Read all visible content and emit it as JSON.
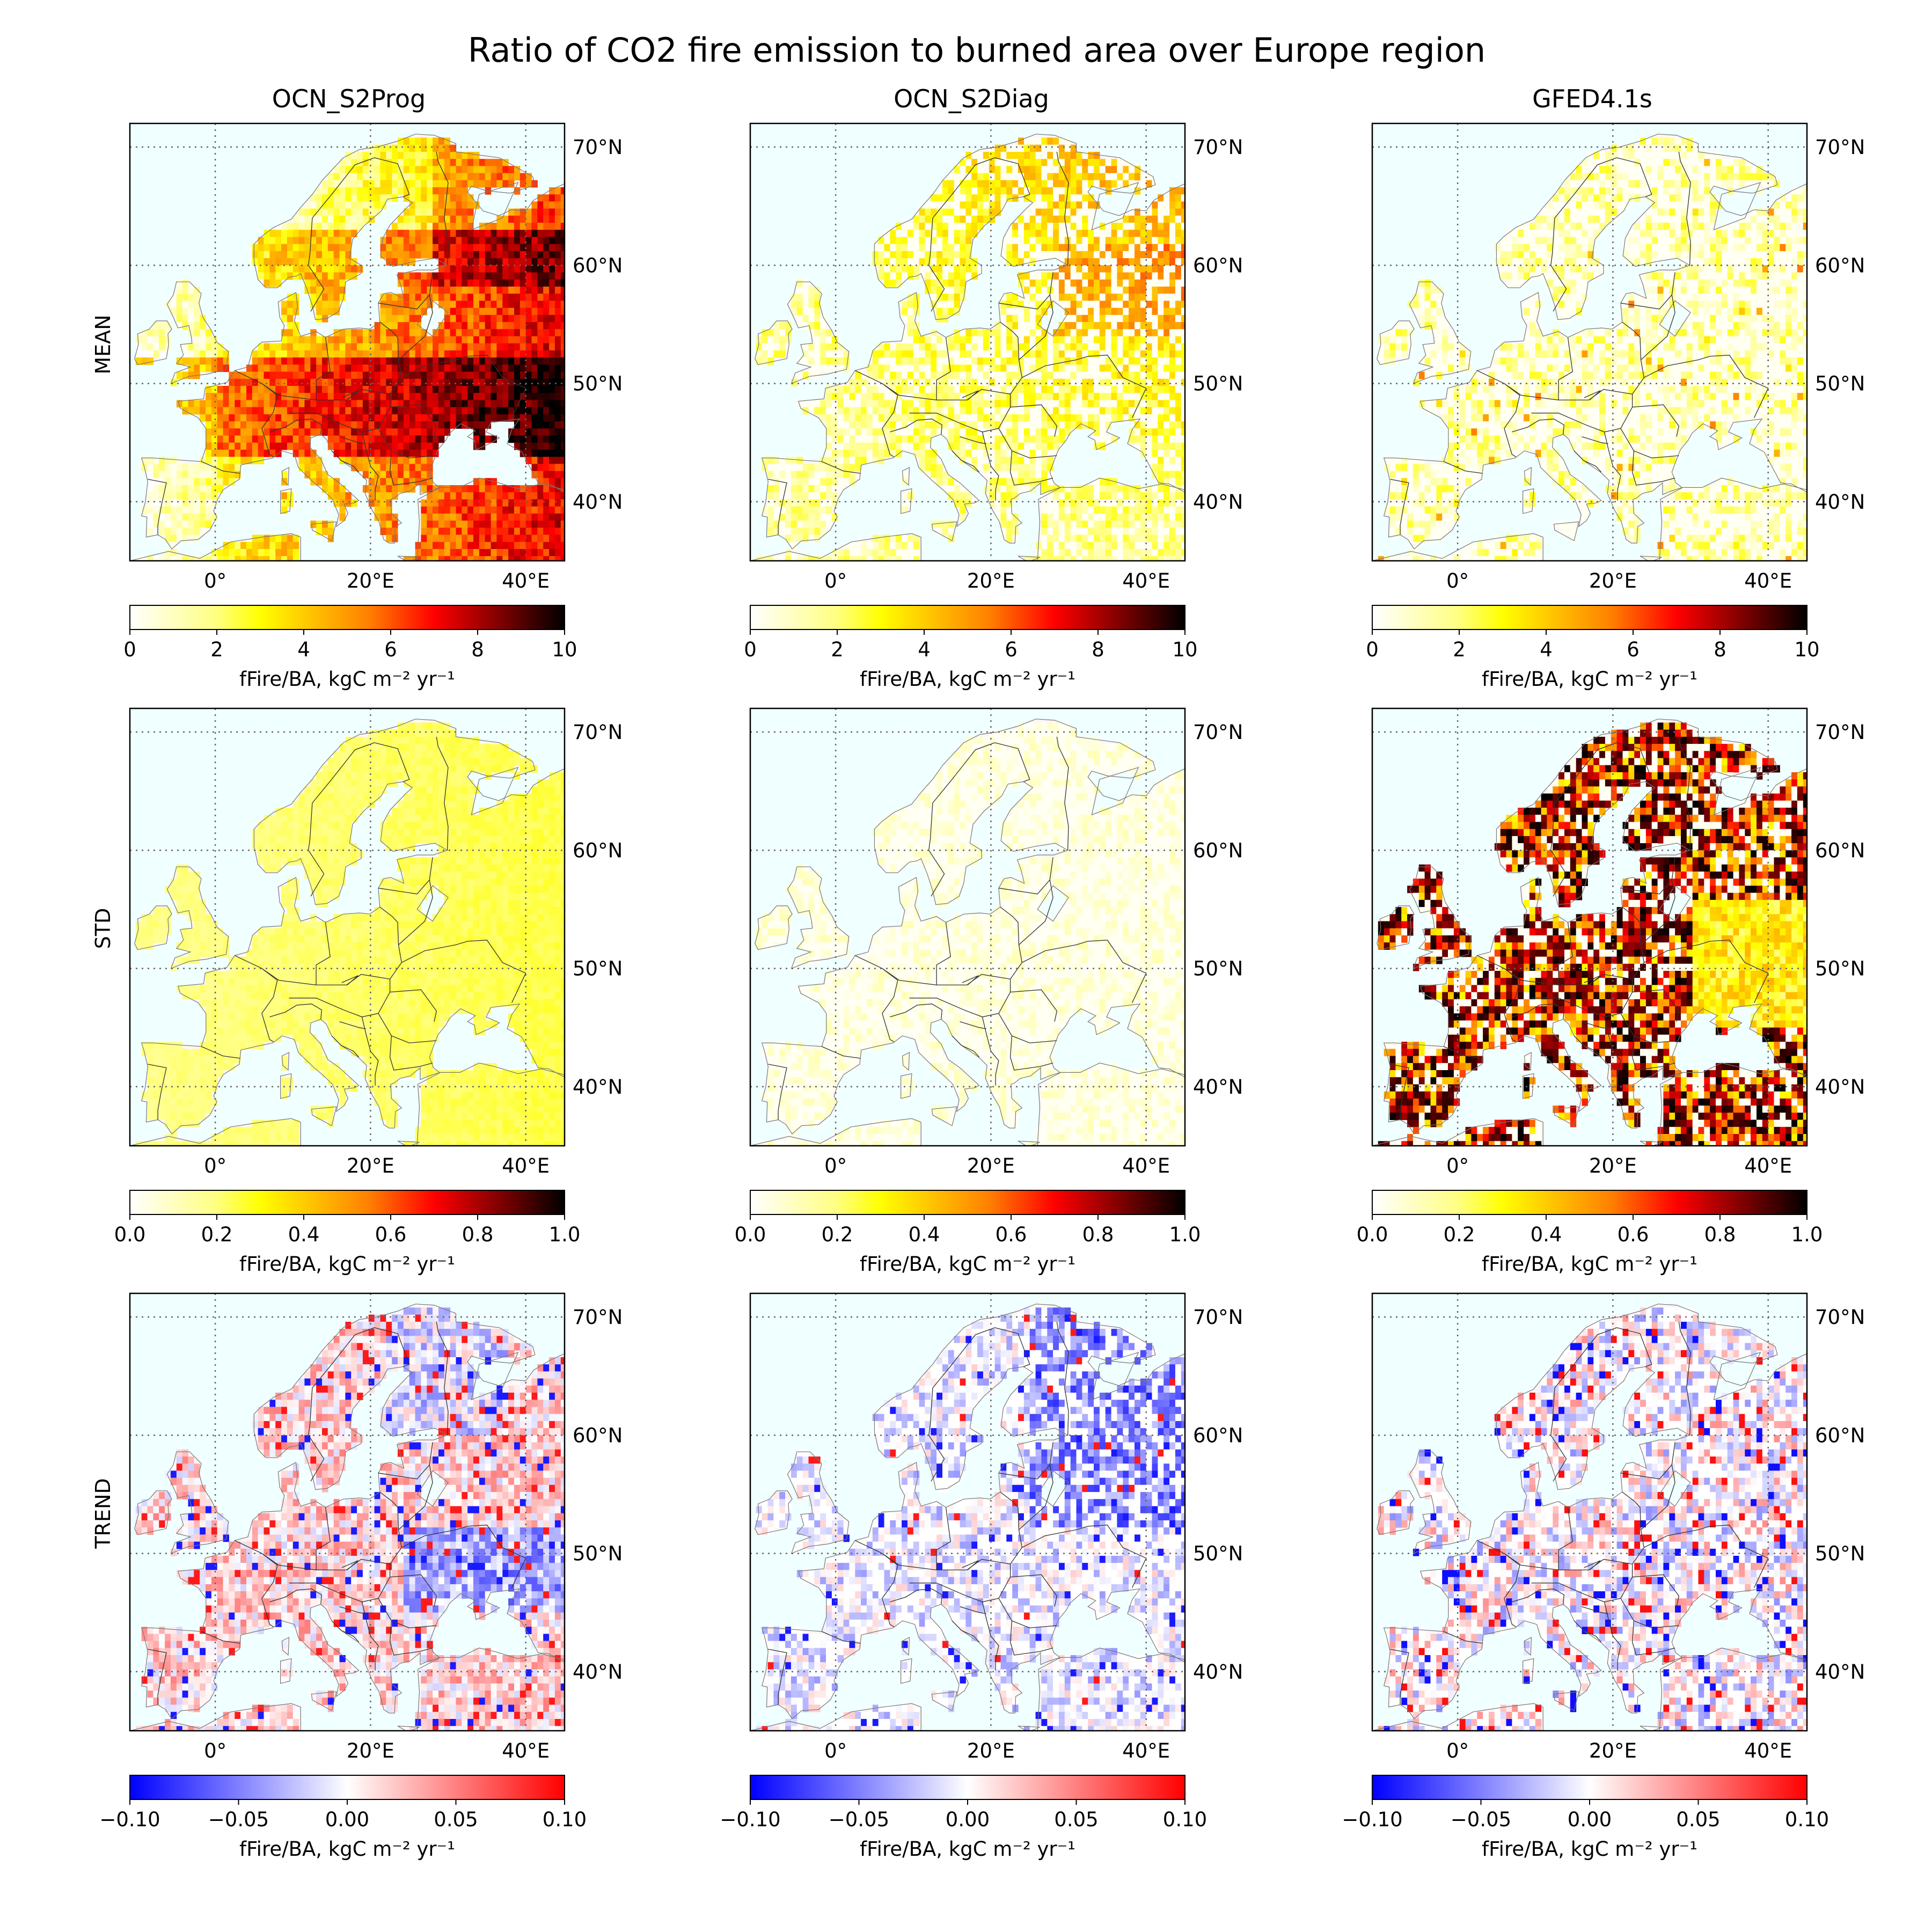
{
  "title": "Ratio of CO2 fire emission to burned area over Europe region",
  "columns": [
    "OCN_S2Prog",
    "OCN_S2Diag",
    "GFED4.1s"
  ],
  "rows": [
    "MEAN",
    "STD",
    "TREND"
  ],
  "map": {
    "lon_range": [
      -11,
      45
    ],
    "lat_range": [
      35,
      72
    ],
    "lon_ticks": [
      {
        "value": 0,
        "label": "0°"
      },
      {
        "value": 20,
        "label": "20°E"
      },
      {
        "value": 40,
        "label": "40°E"
      }
    ],
    "lat_ticks": [
      {
        "value": 40,
        "label": "40°N"
      },
      {
        "value": 50,
        "label": "50°N"
      },
      {
        "value": 60,
        "label": "60°N"
      },
      {
        "value": 70,
        "label": "70°N"
      }
    ],
    "gridlines": "dotted",
    "ocean_color": "#f0ffff"
  },
  "colorbars": [
    {
      "row": "MEAN",
      "cmap": "hot_r",
      "range": [
        0,
        10
      ],
      "ticks": [
        {
          "value": 0,
          "label": "0"
        },
        {
          "value": 2,
          "label": "2"
        },
        {
          "value": 4,
          "label": "4"
        },
        {
          "value": 6,
          "label": "6"
        },
        {
          "value": 8,
          "label": "8"
        },
        {
          "value": 10,
          "label": "10"
        }
      ],
      "label": "fFire/BA, kgC m⁻² yr⁻¹"
    },
    {
      "row": "STD",
      "cmap": "hot_r",
      "range": [
        0,
        1
      ],
      "ticks": [
        {
          "value": 0,
          "label": "0.0"
        },
        {
          "value": 0.2,
          "label": "0.2"
        },
        {
          "value": 0.4,
          "label": "0.4"
        },
        {
          "value": 0.6,
          "label": "0.6"
        },
        {
          "value": 0.8,
          "label": "0.8"
        },
        {
          "value": 1,
          "label": "1.0"
        }
      ],
      "label": "fFire/BA, kgC m⁻² yr⁻¹"
    },
    {
      "row": "TREND",
      "cmap": "bwr",
      "range": [
        -0.1,
        0.1
      ],
      "ticks": [
        {
          "value": -0.1,
          "label": "−0.10"
        },
        {
          "value": -0.05,
          "label": "−0.05"
        },
        {
          "value": 0,
          "label": "0.00"
        },
        {
          "value": 0.05,
          "label": "0.05"
        },
        {
          "value": 0.1,
          "label": "0.10"
        }
      ],
      "label": "fFire/BA, kgC m⁻² yr⁻¹"
    }
  ],
  "chart_data": {
    "type": "heatmap",
    "title": "Ratio of CO2 fire emission to burned area over Europe region",
    "panels": [
      {
        "column": "OCN_S2Prog",
        "row": "MEAN",
        "range": [
          0,
          10
        ],
        "typical_value": 6.5,
        "max_value": 10
      },
      {
        "column": "OCN_S2Diag",
        "row": "MEAN",
        "range": [
          0,
          10
        ],
        "typical_value": 1.5,
        "max_value": 6
      },
      {
        "column": "GFED4.1s",
        "row": "MEAN",
        "range": [
          0,
          10
        ],
        "typical_value": 1.0,
        "max_value": 6
      },
      {
        "column": "OCN_S2Prog",
        "row": "STD",
        "range": [
          0,
          1
        ],
        "typical_value": 0.15,
        "max_value": 0.25
      },
      {
        "column": "OCN_S2Diag",
        "row": "STD",
        "range": [
          0,
          1
        ],
        "typical_value": 0.05,
        "max_value": 0.15
      },
      {
        "column": "GFED4.1s",
        "row": "STD",
        "range": [
          0,
          1
        ],
        "typical_value": 0.6,
        "max_value": 1.0
      },
      {
        "column": "OCN_S2Prog",
        "row": "TREND",
        "range": [
          -0.1,
          0.1
        ],
        "typical_value": 0.02,
        "max_value": 0.1
      },
      {
        "column": "OCN_S2Diag",
        "row": "TREND",
        "range": [
          -0.1,
          0.1
        ],
        "typical_value": -0.01,
        "max_value": 0.1
      },
      {
        "column": "GFED4.1s",
        "row": "TREND",
        "range": [
          -0.1,
          0.1
        ],
        "typical_value": 0.0,
        "max_value": 0.1
      }
    ]
  }
}
